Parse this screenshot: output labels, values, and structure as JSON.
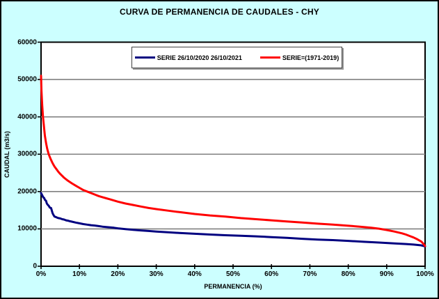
{
  "title": "CURVA DE PERMANENCIA DE CAUDALES - CHY",
  "colors": {
    "background": "#CCFFFF",
    "plot_background": "#FFFFFF",
    "gridline": "#808080",
    "axis": "#000000",
    "series_blue": "#000080",
    "series_red": "#FF0000"
  },
  "legend": [
    {
      "label": "SERIE 26/10/2020 26/10/2021",
      "color": "#000080"
    },
    {
      "label": "SERIE=(1971-2019)",
      "color": "#FF0000"
    }
  ],
  "chart_data": {
    "type": "line",
    "title": "CURVA DE PERMANENCIA DE CAUDALES - CHY",
    "xlabel": "PERMANENCIA (%)",
    "ylabel": "CAUDAL (m3/s)",
    "xlim": [
      0,
      100
    ],
    "ylim": [
      0,
      60000
    ],
    "x_ticks": [
      "0%",
      "10%",
      "20%",
      "30%",
      "40%",
      "50%",
      "60%",
      "70%",
      "80%",
      "90%",
      "100%"
    ],
    "y_ticks": [
      0,
      10000,
      20000,
      30000,
      40000,
      50000,
      60000
    ],
    "grid": "horizontal",
    "legend_position": "top-center",
    "series": [
      {
        "name": "SERIE 26/10/2020 26/10/2021",
        "color": "#000080",
        "points": [
          [
            0,
            19600
          ],
          [
            0.3,
            19000
          ],
          [
            0.6,
            18400
          ],
          [
            0.8,
            18300
          ],
          [
            1.0,
            17800
          ],
          [
            1.3,
            17500
          ],
          [
            1.5,
            16800
          ],
          [
            1.8,
            16400
          ],
          [
            2.0,
            16200
          ],
          [
            2.3,
            15700
          ],
          [
            2.6,
            15600
          ],
          [
            3.0,
            14200
          ],
          [
            3.2,
            13800
          ],
          [
            3.5,
            13300
          ],
          [
            3.8,
            13200
          ],
          [
            4.2,
            13000
          ],
          [
            4.5,
            12900
          ],
          [
            5,
            12800
          ],
          [
            5.5,
            12600
          ],
          [
            6,
            12500
          ],
          [
            6.5,
            12300
          ],
          [
            7,
            12200
          ],
          [
            7.5,
            12050
          ],
          [
            8,
            11950
          ],
          [
            9,
            11700
          ],
          [
            10,
            11500
          ],
          [
            11,
            11300
          ],
          [
            12,
            11150
          ],
          [
            13,
            11000
          ],
          [
            14,
            10900
          ],
          [
            15,
            10750
          ],
          [
            16,
            10600
          ],
          [
            17,
            10500
          ],
          [
            18,
            10400
          ],
          [
            19,
            10300
          ],
          [
            20,
            10150
          ],
          [
            22,
            9950
          ],
          [
            24,
            9750
          ],
          [
            26,
            9600
          ],
          [
            28,
            9450
          ],
          [
            30,
            9300
          ],
          [
            33,
            9100
          ],
          [
            36,
            8900
          ],
          [
            40,
            8700
          ],
          [
            44,
            8500
          ],
          [
            48,
            8300
          ],
          [
            52,
            8150
          ],
          [
            56,
            8000
          ],
          [
            60,
            7800
          ],
          [
            64,
            7600
          ],
          [
            68,
            7350
          ],
          [
            72,
            7150
          ],
          [
            76,
            7000
          ],
          [
            80,
            6800
          ],
          [
            84,
            6550
          ],
          [
            88,
            6350
          ],
          [
            92,
            6100
          ],
          [
            95,
            5950
          ],
          [
            97,
            5800
          ],
          [
            99,
            5600
          ],
          [
            100,
            5300
          ]
        ]
      },
      {
        "name": "SERIE=(1971-2019)",
        "color": "#FF0000",
        "points": [
          [
            0,
            51000
          ],
          [
            0.1,
            47000
          ],
          [
            0.3,
            43000
          ],
          [
            0.5,
            40000
          ],
          [
            0.8,
            37000
          ],
          [
            1.0,
            35000
          ],
          [
            1.3,
            33000
          ],
          [
            1.6,
            31500
          ],
          [
            2.0,
            30000
          ],
          [
            2.5,
            28700
          ],
          [
            3.0,
            27600
          ],
          [
            3.5,
            26700
          ],
          [
            4.0,
            26000
          ],
          [
            4.5,
            25300
          ],
          [
            5,
            24700
          ],
          [
            6,
            23700
          ],
          [
            7,
            22900
          ],
          [
            8,
            22200
          ],
          [
            9,
            21600
          ],
          [
            10,
            21000
          ],
          [
            11,
            20400
          ],
          [
            12,
            20000
          ],
          [
            13,
            19600
          ],
          [
            14,
            19200
          ],
          [
            15,
            18800
          ],
          [
            16,
            18500
          ],
          [
            17,
            18200
          ],
          [
            18,
            17900
          ],
          [
            19,
            17600
          ],
          [
            20,
            17300
          ],
          [
            22,
            16800
          ],
          [
            24,
            16400
          ],
          [
            26,
            16000
          ],
          [
            28,
            15600
          ],
          [
            30,
            15300
          ],
          [
            33,
            14900
          ],
          [
            36,
            14500
          ],
          [
            40,
            14000
          ],
          [
            44,
            13600
          ],
          [
            48,
            13300
          ],
          [
            52,
            12900
          ],
          [
            56,
            12600
          ],
          [
            60,
            12300
          ],
          [
            64,
            12000
          ],
          [
            68,
            11700
          ],
          [
            72,
            11400
          ],
          [
            76,
            11150
          ],
          [
            80,
            10850
          ],
          [
            83,
            10600
          ],
          [
            86,
            10300
          ],
          [
            88,
            10050
          ],
          [
            90,
            9700
          ],
          [
            92,
            9300
          ],
          [
            94,
            8800
          ],
          [
            95,
            8500
          ],
          [
            96,
            8100
          ],
          [
            97,
            7700
          ],
          [
            98,
            7200
          ],
          [
            99,
            6600
          ],
          [
            99.5,
            6100
          ],
          [
            100,
            5400
          ]
        ]
      }
    ]
  }
}
